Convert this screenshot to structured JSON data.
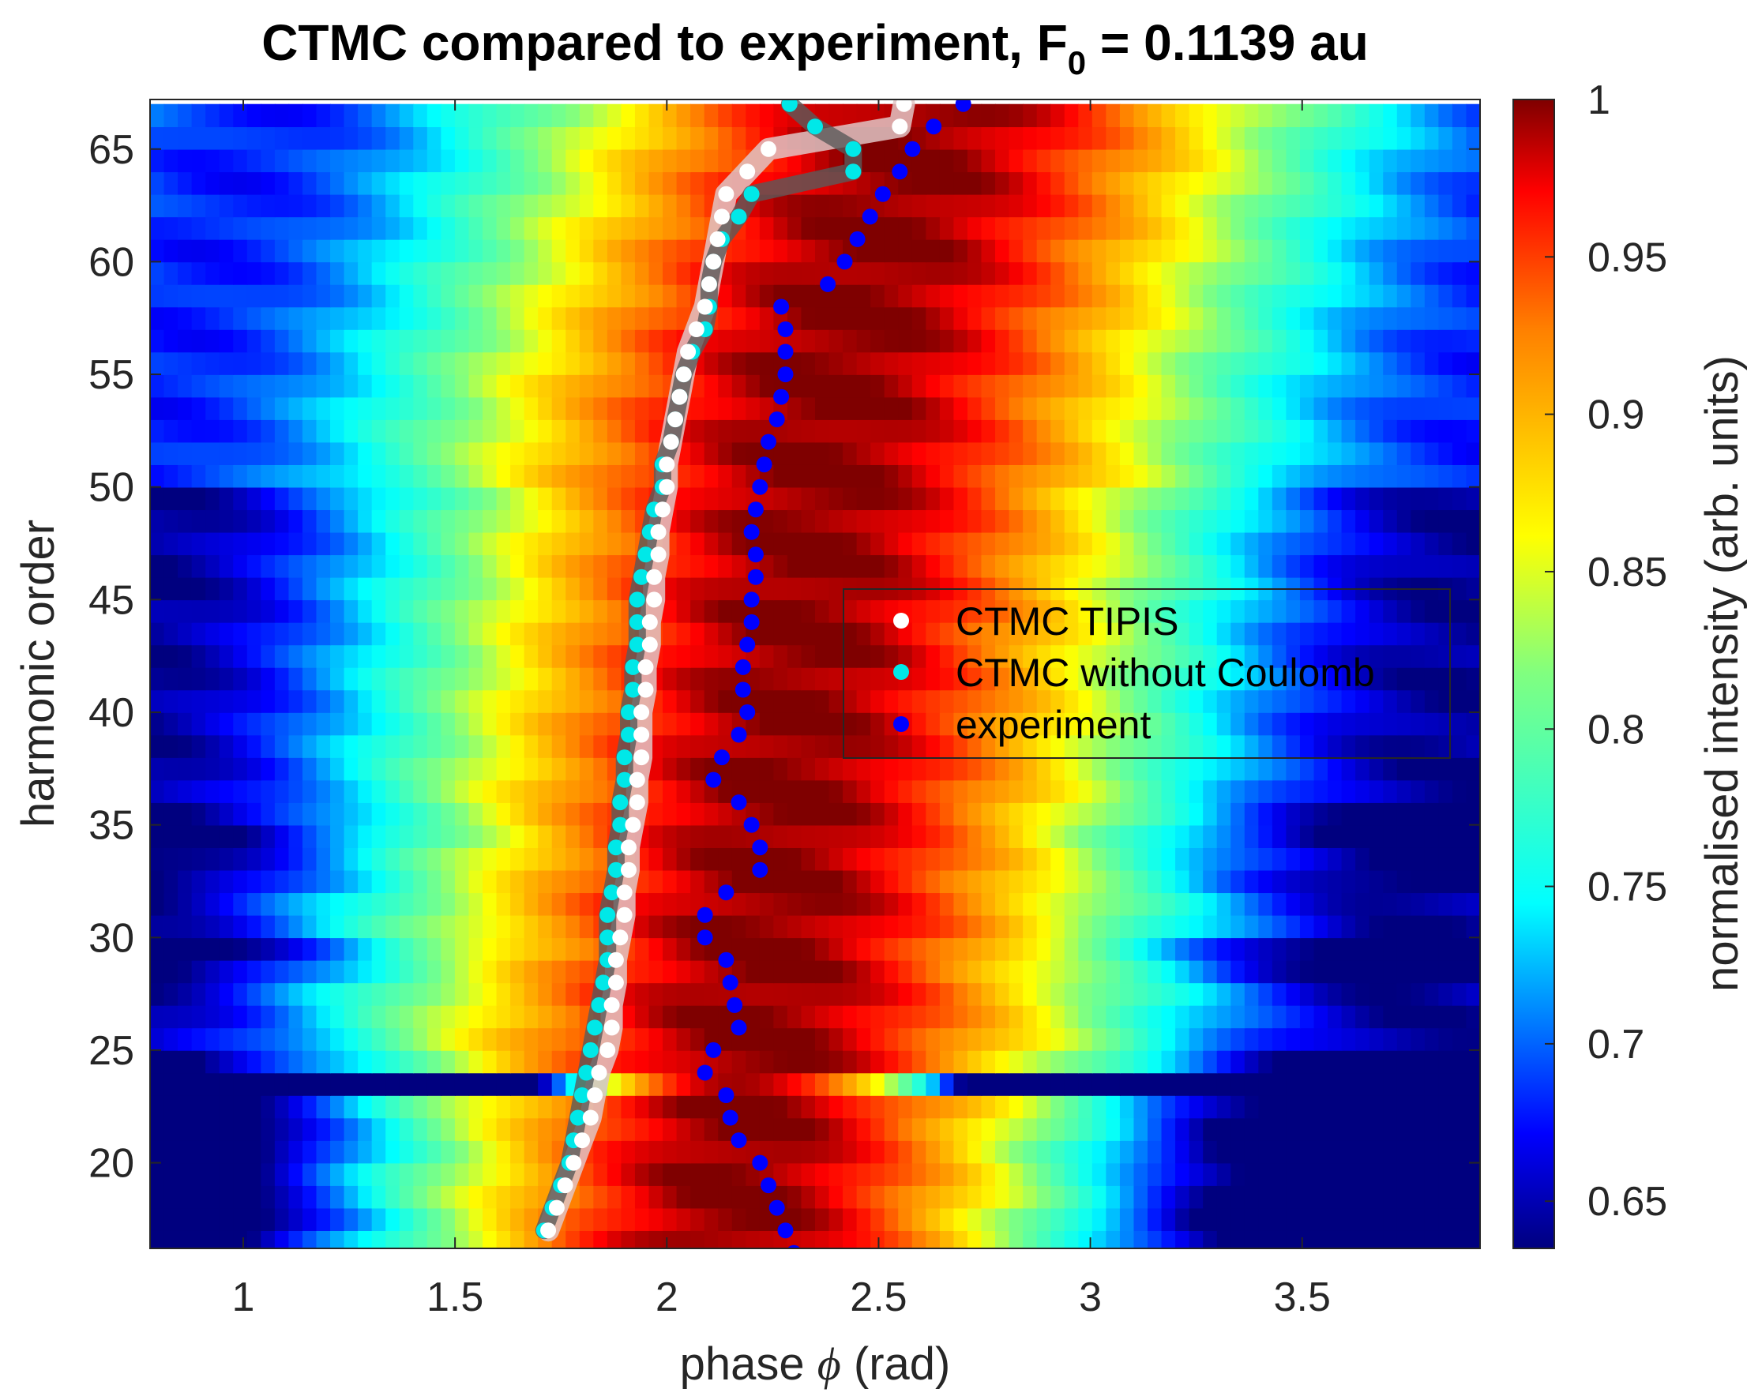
{
  "chart_data": {
    "type": "heatmap",
    "title": "CTMC compared to experiment, F",
    "title_subscript": "0",
    "title_suffix": " = 0.1139 au",
    "xlabel_prefix": "phase ",
    "xlabel_symbol": "ϕ",
    "xlabel_suffix": " (rad)",
    "ylabel": "harmonic order",
    "xlim": [
      0.78,
      3.92
    ],
    "ylim": [
      16.2,
      67.2
    ],
    "xticks": [
      1,
      1.5,
      2,
      2.5,
      3,
      3.5
    ],
    "xtick_labels": [
      "1",
      "1.5",
      "2",
      "2.5",
      "3",
      "3.5"
    ],
    "yticks": [
      20,
      25,
      30,
      35,
      40,
      45,
      50,
      55,
      60,
      65
    ],
    "ytick_labels": [
      "20",
      "25",
      "30",
      "35",
      "40",
      "45",
      "50",
      "55",
      "60",
      "65"
    ],
    "colorbar": {
      "label": "normalised intensity (arb. units)",
      "range": [
        0.635,
        1.0
      ],
      "ticks": [
        0.65,
        0.7,
        0.75,
        0.8,
        0.85,
        0.9,
        0.95,
        1
      ],
      "tick_labels": [
        "0.65",
        "0.7",
        "0.75",
        "0.8",
        "0.85",
        "0.9",
        "0.95",
        "1"
      ],
      "colormap": "jet-red"
    },
    "heatmap": {
      "description": "normalised harmonic intensity vs phase; maximum band near phase 2.2-2.6 rad",
      "peak_phase_low": 2.15,
      "peak_phase_high": 2.55,
      "deep_minimum_harmonic": 23.5
    },
    "legend": {
      "position": "center-right",
      "entries": [
        {
          "label": "CTMC TIPIS",
          "color": "#ffffff"
        },
        {
          "label": "CTMC without Coulomb",
          "color": "#00e8e8"
        },
        {
          "label": "experiment",
          "color": "#0000ff"
        }
      ]
    },
    "series": [
      {
        "name": "CTMC TIPIS",
        "color": "#ffffff",
        "band_color": "#e0c4c4",
        "y": [
          17,
          18,
          19,
          20,
          21,
          22,
          23,
          24,
          25,
          26,
          27,
          28,
          29,
          30,
          31,
          32,
          33,
          34,
          35,
          36,
          37,
          38,
          39,
          40,
          41,
          42,
          43,
          44,
          45,
          46,
          47,
          48,
          49,
          50,
          51,
          52,
          53,
          54,
          55,
          56,
          57,
          58,
          59,
          60,
          61,
          62,
          63,
          64,
          65,
          66,
          67
        ],
        "x": [
          1.72,
          1.74,
          1.76,
          1.78,
          1.8,
          1.82,
          1.83,
          1.84,
          1.86,
          1.87,
          1.87,
          1.88,
          1.88,
          1.89,
          1.9,
          1.9,
          1.91,
          1.91,
          1.92,
          1.93,
          1.93,
          1.94,
          1.94,
          1.94,
          1.95,
          1.95,
          1.96,
          1.96,
          1.97,
          1.97,
          1.98,
          1.98,
          1.99,
          2.0,
          2.0,
          2.01,
          2.02,
          2.03,
          2.04,
          2.05,
          2.07,
          2.09,
          2.1,
          2.11,
          2.12,
          2.13,
          2.14,
          2.19,
          2.24,
          2.55,
          2.56
        ]
      },
      {
        "name": "CTMC without Coulomb",
        "color": "#00e8e8",
        "band_color": "#5a5a5a",
        "y": [
          17,
          18,
          19,
          20,
          21,
          22,
          23,
          24,
          25,
          26,
          27,
          28,
          29,
          30,
          31,
          32,
          33,
          34,
          35,
          36,
          37,
          38,
          39,
          40,
          41,
          42,
          43,
          44,
          45,
          46,
          47,
          48,
          49,
          50,
          51,
          52,
          53,
          54,
          55,
          56,
          57,
          58,
          59,
          60,
          61,
          62,
          63,
          64,
          65,
          66,
          67
        ],
        "x": [
          1.71,
          1.73,
          1.75,
          1.77,
          1.78,
          1.79,
          1.8,
          1.81,
          1.82,
          1.83,
          1.84,
          1.85,
          1.86,
          1.86,
          1.86,
          1.87,
          1.88,
          1.88,
          1.89,
          1.89,
          1.9,
          1.9,
          1.91,
          1.91,
          1.92,
          1.92,
          1.93,
          1.93,
          1.93,
          1.94,
          1.95,
          1.96,
          1.97,
          1.99,
          1.99,
          2.01,
          2.02,
          2.03,
          2.04,
          2.06,
          2.09,
          2.1,
          2.1,
          2.11,
          2.13,
          2.17,
          2.2,
          2.44,
          2.44,
          2.35,
          2.29
        ]
      },
      {
        "name": "experiment",
        "color": "#0000ff",
        "y": [
          16,
          17,
          18,
          19,
          20,
          21,
          22,
          23,
          24,
          25,
          26,
          27,
          28,
          29,
          30,
          31,
          32,
          33,
          34,
          35,
          36,
          37,
          38,
          39,
          40,
          41,
          42,
          43,
          44,
          45,
          46,
          47,
          48,
          49,
          50,
          51,
          52,
          53,
          54,
          55,
          56,
          57,
          58,
          59,
          60,
          61,
          62,
          63,
          64,
          65,
          66,
          67
        ],
        "x": [
          2.3,
          2.28,
          2.26,
          2.24,
          2.22,
          2.17,
          2.15,
          2.14,
          2.09,
          2.11,
          2.17,
          2.16,
          2.15,
          2.14,
          2.09,
          2.09,
          2.14,
          2.22,
          2.22,
          2.2,
          2.17,
          2.11,
          2.13,
          2.17,
          2.19,
          2.18,
          2.18,
          2.19,
          2.2,
          2.2,
          2.21,
          2.21,
          2.2,
          2.21,
          2.22,
          2.23,
          2.24,
          2.26,
          2.27,
          2.28,
          2.28,
          2.28,
          2.27,
          2.38,
          2.42,
          2.45,
          2.48,
          2.51,
          2.55,
          2.58,
          2.63,
          2.7
        ]
      }
    ]
  }
}
